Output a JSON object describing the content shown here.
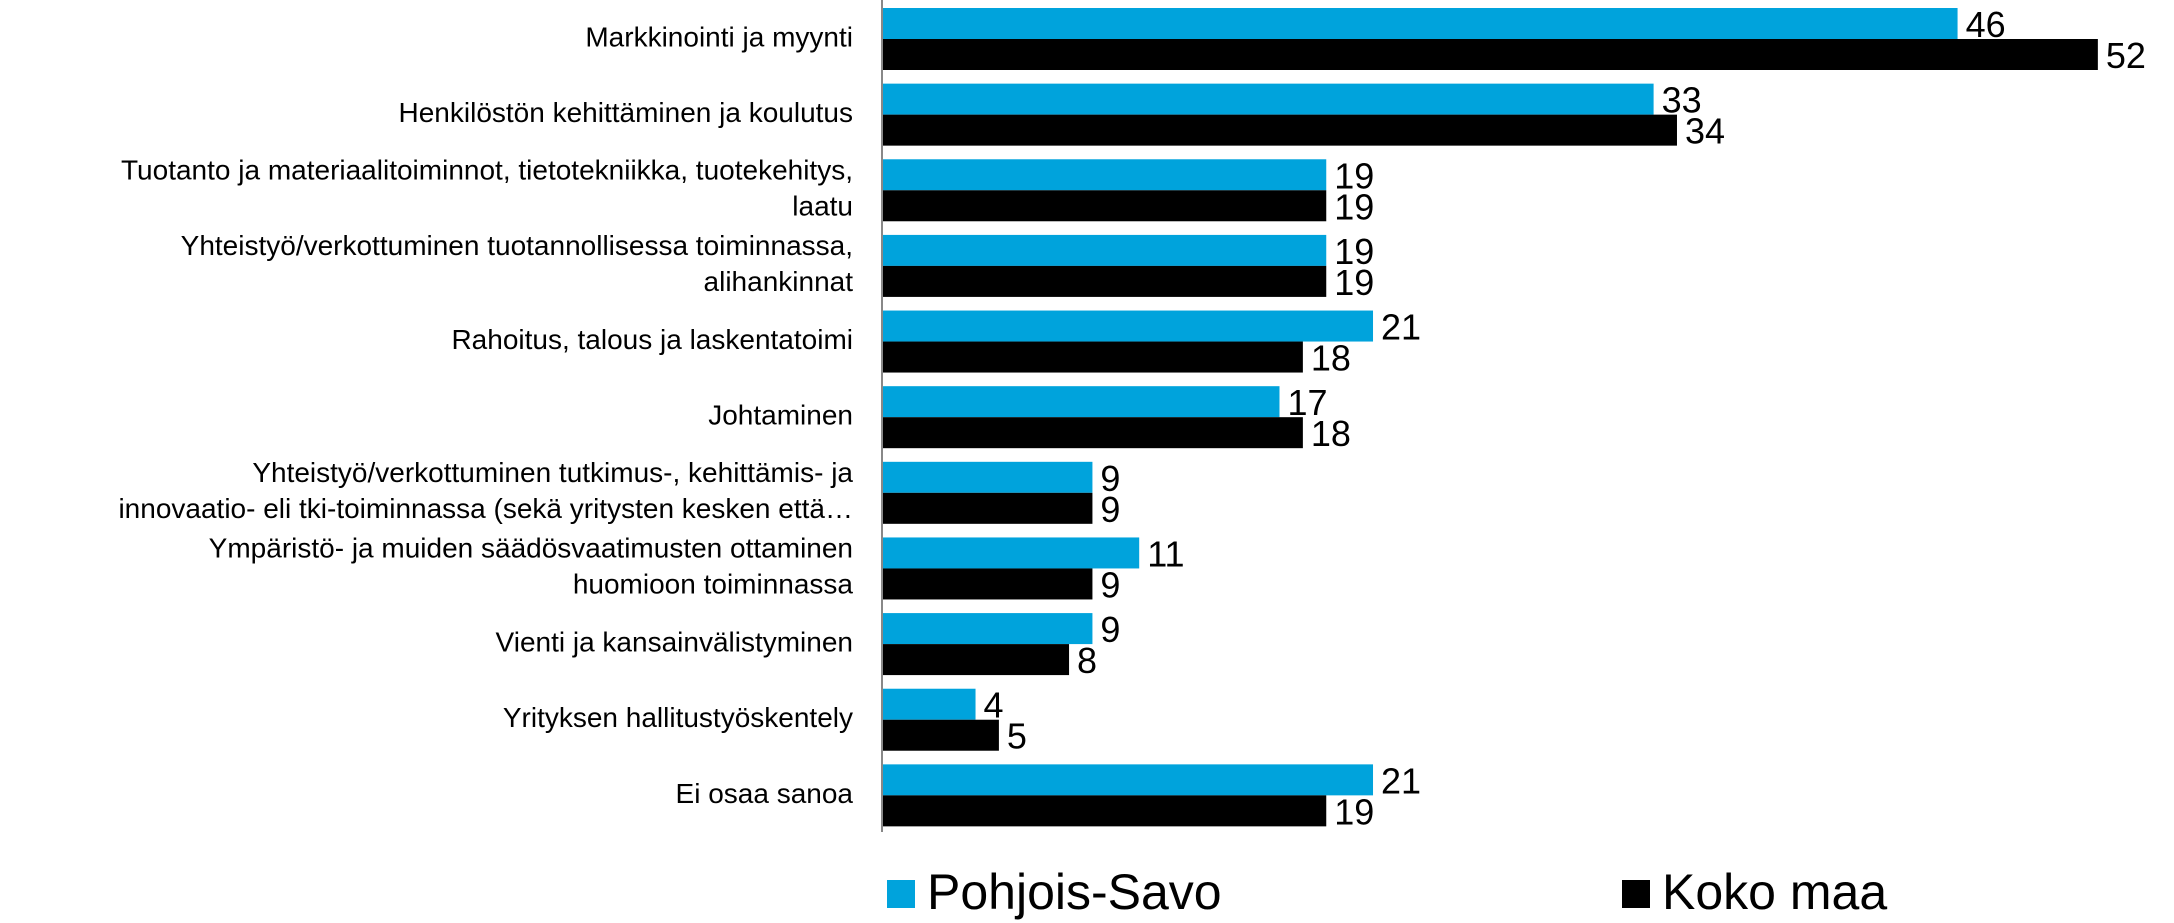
{
  "chart_data": {
    "type": "hbar",
    "categories": [
      "Markkinointi ja myynti",
      "Henkilöstön kehittäminen ja koulutus",
      "Tuotanto ja materiaalitoiminnot, tietotekniikka, tuotekehitys,\nlaatu",
      "Yhteistyö/verkottuminen tuotannollisessa toiminnassa,\nalihankinnat",
      "Rahoitus, talous ja laskentatoimi",
      "Johtaminen",
      "Yhteistyö/verkottuminen tutkimus-, kehittämis- ja\ninnovaatio- eli tki-toiminnassa (sekä yritysten kesken että…",
      "Ympäristö- ja muiden säädösvaatimusten ottaminen\nhuomioon toiminnassa",
      "Vienti ja kansainvälistyminen",
      "Yrityksen hallitustyöskentely",
      "Ei osaa sanoa"
    ],
    "series": [
      {
        "name": "Pohjois-Savo",
        "color": "#00a3dc",
        "values": [
          46,
          33,
          19,
          19,
          21,
          17,
          9,
          11,
          9,
          4,
          21
        ]
      },
      {
        "name": "Koko maa",
        "color": "#000000",
        "values": [
          52,
          34,
          19,
          19,
          18,
          18,
          9,
          9,
          8,
          5,
          19
        ]
      }
    ],
    "xlim": [
      0,
      55
    ]
  }
}
